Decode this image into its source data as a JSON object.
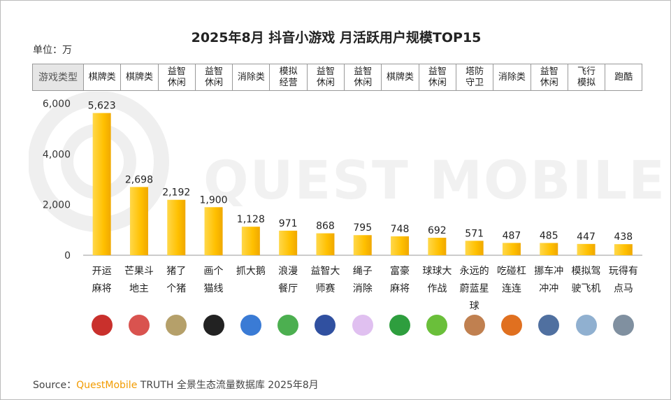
{
  "title": "2025年8月 抖音小游戏 月活跃用户规模TOP15",
  "unit": "单位：万",
  "watermark": "QUEST MOBILE",
  "category_header": "游戏类型",
  "categories_row": [
    "棋牌类",
    "棋牌类",
    "益智\n休闲",
    "益智\n休闲",
    "消除类",
    "模拟\n经营",
    "益智\n休闲",
    "益智\n休闲",
    "棋牌类",
    "益智\n休闲",
    "塔防\n守卫",
    "消除类",
    "益智\n休闲",
    "飞行\n模拟",
    "跑酷"
  ],
  "chart_data": {
    "type": "bar",
    "title": "2025年8月 抖音小游戏 月活跃用户规模TOP15",
    "ylabel": "单位：万",
    "ylim": [
      0,
      6000
    ],
    "yticks": [
      "0",
      "2,000",
      "4,000",
      "6,000"
    ],
    "grid": false,
    "categories": [
      "开运麻将",
      "芒果斗地主",
      "猪了个猪",
      "画个猫线",
      "抓大鹅",
      "浪漫餐厅",
      "益智大师赛",
      "绳子消除",
      "富豪麻将",
      "球球大作战",
      "永远的蔚蓝星球",
      "吃碰杠连连",
      "挪车冲冲冲",
      "模拟驾驶飞机",
      "玩得有点马"
    ],
    "values": [
      5623,
      2698,
      2192,
      1900,
      1128,
      971,
      868,
      795,
      748,
      692,
      571,
      487,
      485,
      447,
      438
    ],
    "labels": [
      "5,623",
      "2,698",
      "2,192",
      "1,900",
      "1,128",
      "971",
      "868",
      "795",
      "748",
      "692",
      "571",
      "487",
      "485",
      "447",
      "438"
    ],
    "bar_color": "#ffc000"
  },
  "icon_colors": [
    "#c9302c",
    "#d9534f",
    "#b5a06a",
    "#222222",
    "#3a7bd5",
    "#4caf50",
    "#3050a0",
    "#e0c0f0",
    "#2e9e3e",
    "#6abf3a",
    "#c08050",
    "#e07020",
    "#5070a0",
    "#90b0d0",
    "#8090a0"
  ],
  "source": {
    "prefix": "Source：",
    "brand": "QuestMobile",
    "rest": " TRUTH 全景生态流量数据库 2025年8月"
  }
}
